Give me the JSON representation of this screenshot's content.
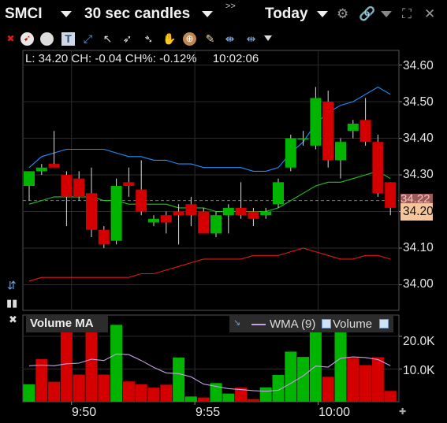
{
  "header": {
    "symbol": "SMCI",
    "interval": "30 sec candles",
    "expand_glyph": ">>",
    "range": "Today"
  },
  "info_line": {
    "low": "L: 34.20",
    "change": "CH: -0.04",
    "change_pct": "CH%: -0.12%",
    "time": "10:02:06"
  },
  "price_axis": [
    "34.60",
    "34.50",
    "34.40",
    "34.30",
    "34.20",
    "34.10",
    "34.00"
  ],
  "last_price": "34.20",
  "ghost_price": "34.22",
  "volume_panel": {
    "title": "Volume MA",
    "legend_wma": "WMA (9)",
    "legend_volume": "Volume",
    "axis": [
      "20.0K",
      "10.0K"
    ]
  },
  "time_axis": [
    "9:50",
    "9:55",
    "10:00"
  ],
  "colors": {
    "up": "#00b400",
    "down": "#d40000",
    "ma_blue": "#1e90ff",
    "ma_green": "#22c322",
    "ma_red": "#e01818",
    "wma": "#c8a0e8"
  },
  "chart_data": {
    "type": "candlestick",
    "y_range": [
      33.93,
      34.64
    ],
    "candles": [
      {
        "o": 34.27,
        "h": 34.31,
        "l": 34.23,
        "c": 34.31
      },
      {
        "o": 34.31,
        "h": 34.33,
        "l": 34.3,
        "c": 34.32
      },
      {
        "o": 34.33,
        "h": 34.42,
        "l": 34.32,
        "c": 34.32
      },
      {
        "o": 34.3,
        "h": 34.31,
        "l": 34.16,
        "c": 34.24
      },
      {
        "o": 34.29,
        "h": 34.31,
        "l": 34.23,
        "c": 34.24
      },
      {
        "o": 34.25,
        "h": 34.32,
        "l": 34.13,
        "c": 34.15
      },
      {
        "o": 34.15,
        "h": 34.16,
        "l": 34.1,
        "c": 34.11
      },
      {
        "o": 34.12,
        "h": 34.29,
        "l": 34.11,
        "c": 34.27
      },
      {
        "o": 34.28,
        "h": 34.32,
        "l": 34.24,
        "c": 34.27
      },
      {
        "o": 34.26,
        "h": 34.34,
        "l": 34.19,
        "c": 34.2
      },
      {
        "o": 34.17,
        "h": 34.19,
        "l": 34.16,
        "c": 34.18
      },
      {
        "o": 34.19,
        "h": 34.2,
        "l": 34.14,
        "c": 34.17
      },
      {
        "o": 34.2,
        "h": 34.22,
        "l": 34.11,
        "c": 34.19
      },
      {
        "o": 34.22,
        "h": 34.24,
        "l": 34.16,
        "c": 34.19
      },
      {
        "o": 34.2,
        "h": 34.21,
        "l": 34.14,
        "c": 34.14
      },
      {
        "o": 34.14,
        "h": 34.2,
        "l": 34.13,
        "c": 34.19
      },
      {
        "o": 34.19,
        "h": 34.22,
        "l": 34.14,
        "c": 34.21
      },
      {
        "o": 34.21,
        "h": 34.28,
        "l": 34.18,
        "c": 34.19
      },
      {
        "o": 34.2,
        "h": 34.21,
        "l": 34.16,
        "c": 34.18
      },
      {
        "o": 34.19,
        "h": 34.21,
        "l": 34.18,
        "c": 34.2
      },
      {
        "o": 34.22,
        "h": 34.29,
        "l": 34.21,
        "c": 34.28
      },
      {
        "o": 34.32,
        "h": 34.41,
        "l": 34.31,
        "c": 34.4
      },
      {
        "o": 34.4,
        "h": 34.42,
        "l": 34.38,
        "c": 34.4
      },
      {
        "o": 34.38,
        "h": 34.54,
        "l": 34.37,
        "c": 34.51
      },
      {
        "o": 34.5,
        "h": 34.53,
        "l": 34.32,
        "c": 34.34
      },
      {
        "o": 34.34,
        "h": 34.4,
        "l": 34.29,
        "c": 34.39
      },
      {
        "o": 34.42,
        "h": 34.45,
        "l": 34.4,
        "c": 34.44
      },
      {
        "o": 34.45,
        "h": 34.51,
        "l": 34.38,
        "c": 34.39
      },
      {
        "o": 34.39,
        "h": 34.41,
        "l": 34.24,
        "c": 34.25
      },
      {
        "o": 34.28,
        "h": 34.28,
        "l": 34.19,
        "c": 34.21
      }
    ],
    "ma_blue": [
      34.32,
      34.35,
      34.36,
      34.37,
      34.37,
      34.37,
      34.37,
      34.36,
      34.35,
      34.35,
      34.34,
      34.34,
      34.33,
      34.33,
      34.32,
      34.32,
      34.32,
      34.32,
      34.31,
      34.31,
      34.32,
      34.36,
      34.39,
      34.44,
      34.47,
      34.49,
      34.5,
      34.52,
      34.54,
      34.52
    ],
    "ma_green": [
      34.22,
      34.23,
      34.24,
      34.24,
      34.24,
      34.24,
      34.23,
      34.23,
      34.22,
      34.22,
      34.22,
      34.22,
      34.21,
      34.21,
      34.21,
      34.2,
      34.2,
      34.2,
      34.2,
      34.2,
      34.21,
      34.23,
      34.25,
      34.27,
      34.28,
      34.28,
      34.29,
      34.3,
      34.31,
      34.29
    ],
    "ma_red": [
      34.01,
      34.02,
      34.02,
      34.02,
      34.02,
      34.02,
      34.02,
      34.02,
      34.02,
      34.03,
      34.03,
      34.04,
      34.05,
      34.06,
      34.07,
      34.07,
      34.07,
      34.07,
      34.08,
      34.08,
      34.08,
      34.09,
      34.1,
      34.09,
      34.08,
      34.07,
      34.07,
      34.08,
      34.08,
      34.07
    ],
    "volume_range": [
      0,
      26000
    ],
    "volume": [
      {
        "v": 5300,
        "up": true
      },
      {
        "v": 13000,
        "up": false
      },
      {
        "v": 6100,
        "up": false
      },
      {
        "v": 25000,
        "up": false
      },
      {
        "v": 8300,
        "up": false
      },
      {
        "v": 24000,
        "up": false
      },
      {
        "v": 8300,
        "up": false
      },
      {
        "v": 23500,
        "up": true
      },
      {
        "v": 6200,
        "up": false
      },
      {
        "v": 5300,
        "up": false
      },
      {
        "v": 4300,
        "up": false
      },
      {
        "v": 5200,
        "up": false
      },
      {
        "v": 13500,
        "up": true
      },
      {
        "v": 1600,
        "up": true
      },
      {
        "v": 1300,
        "up": false
      },
      {
        "v": 5700,
        "up": true
      },
      {
        "v": 2500,
        "up": true
      },
      {
        "v": 4300,
        "up": false
      },
      {
        "v": 800,
        "up": false
      },
      {
        "v": 4400,
        "up": true
      },
      {
        "v": 8200,
        "up": true
      },
      {
        "v": 15300,
        "up": true
      },
      {
        "v": 13700,
        "up": true
      },
      {
        "v": 21600,
        "up": true
      },
      {
        "v": 7600,
        "up": false
      },
      {
        "v": 25000,
        "up": true
      },
      {
        "v": 13400,
        "up": false
      },
      {
        "v": 11200,
        "up": false
      },
      {
        "v": 13600,
        "up": false
      },
      {
        "v": 3300,
        "up": false
      }
    ],
    "wma": [
      11000,
      11200,
      11000,
      11600,
      11800,
      13000,
      12600,
      14600,
      14400,
      12600,
      10500,
      8800,
      8600,
      7600,
      5400,
      4700,
      4000,
      3700,
      3400,
      3200,
      3500,
      5600,
      7900,
      10900,
      10600,
      13300,
      13700,
      13500,
      12900,
      11000
    ]
  }
}
